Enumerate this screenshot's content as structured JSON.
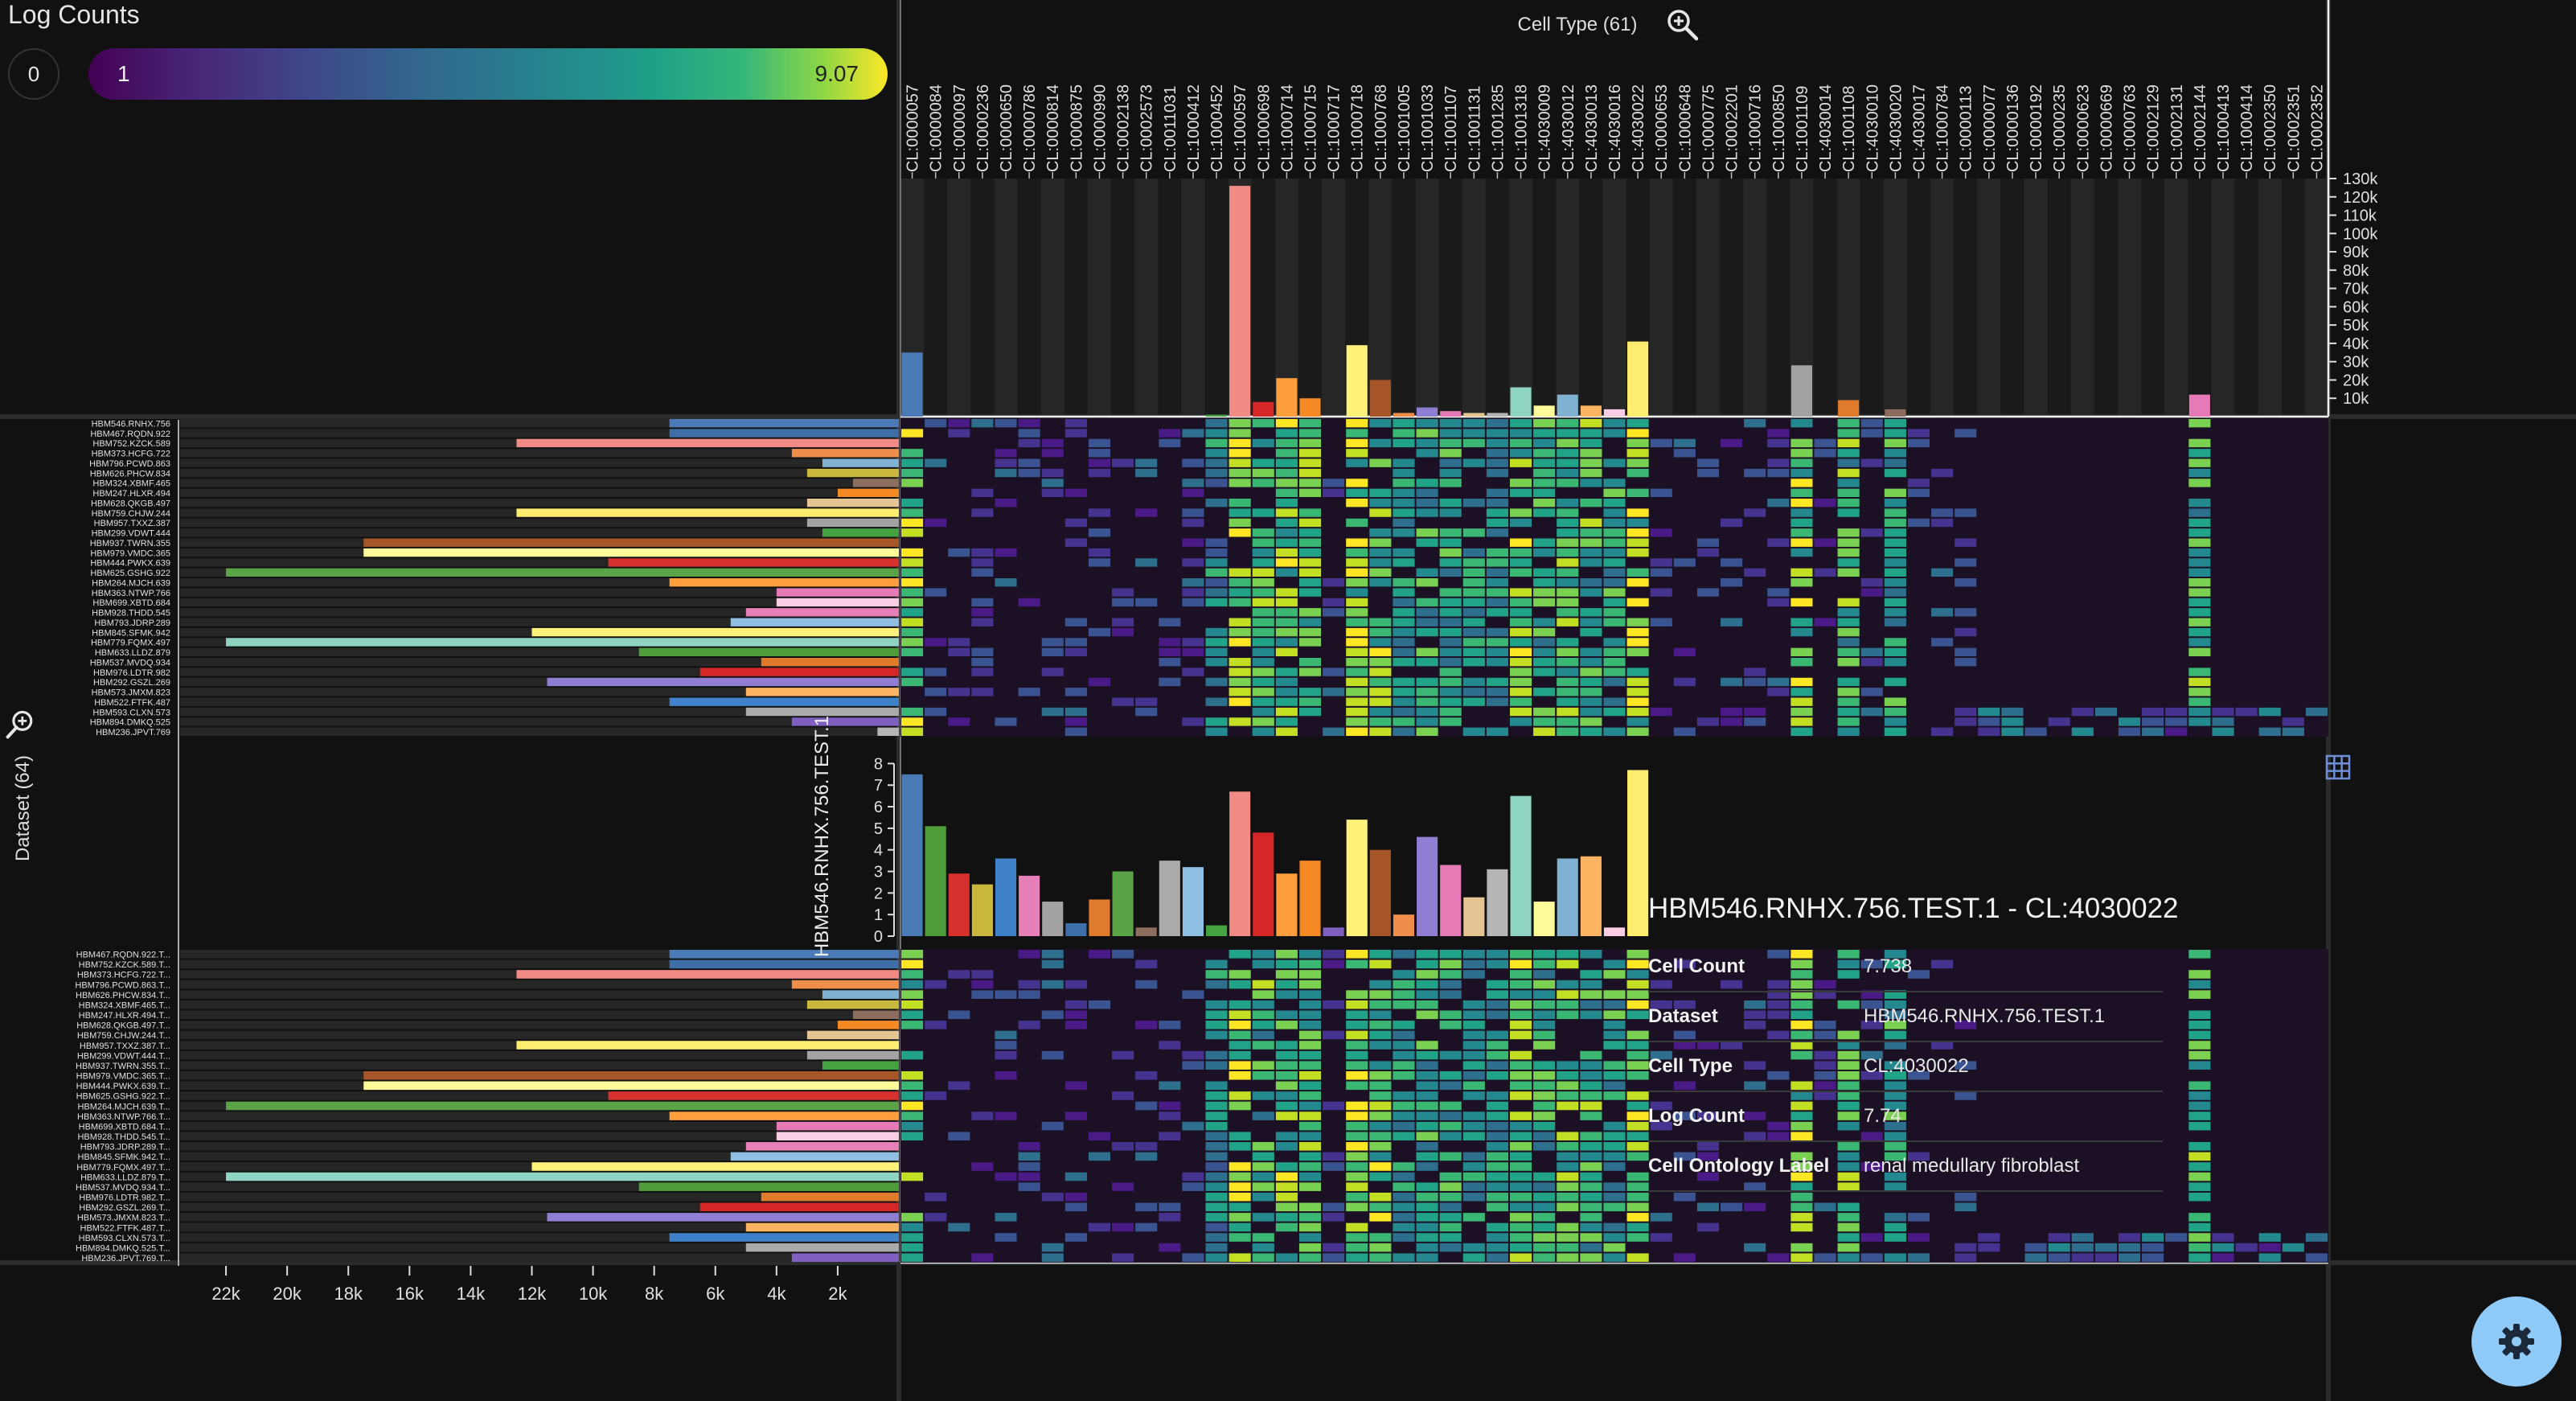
{
  "legend": {
    "title": "Log Counts",
    "zero_label": "0",
    "min_label": "1",
    "max_label": "9.07"
  },
  "x_axis": {
    "title": "Cell Type (61)"
  },
  "y_axis": {
    "title": "Dataset (64)"
  },
  "colors": {
    "background": "#111111",
    "accent": "#90caf9"
  },
  "icons": {
    "zoom_x": "zoom-in-icon",
    "zoom_y": "zoom-in-icon",
    "grid": "grid-icon",
    "settings": "gear-icon"
  },
  "tooltip": {
    "title": "HBM546.RNHX.756.TEST.1 - CL:4030022",
    "rows": [
      {
        "key": "Cell Count",
        "value": "7.738"
      },
      {
        "key": "Dataset",
        "value": "HBM546.RNHX.756.TEST.1"
      },
      {
        "key": "Cell Type",
        "value": "CL:4030022"
      },
      {
        "key": "Log Count",
        "value": "7.74"
      },
      {
        "key": "Cell Ontology Label",
        "value": "renal medullary fibroblast"
      }
    ]
  },
  "chart_data": [
    {
      "type": "bar",
      "name": "cell-type-totals",
      "categories": [
        "CL:0000057",
        "CL:0000084",
        "CL:0000097",
        "CL:0000236",
        "CL:0000650",
        "CL:0000786",
        "CL:0000814",
        "CL:0000875",
        "CL:0000990",
        "CL:0002138",
        "CL:0002573",
        "CL:0011031",
        "CL:1000412",
        "CL:1000452",
        "CL:1000597",
        "CL:1000698",
        "CL:1000714",
        "CL:1000715",
        "CL:1000717",
        "CL:1000718",
        "CL:1000768",
        "CL:1001005",
        "CL:1001033",
        "CL:1001107",
        "CL:1001131",
        "CL:1001285",
        "CL:1001318",
        "CL:4030009",
        "CL:4030012",
        "CL:4030013",
        "CL:4030016",
        "CL:4030022",
        "CL:0000653",
        "CL:1000648",
        "CL:0000775",
        "CL:0002201",
        "CL:1000716",
        "CL:1000850",
        "CL:1001109",
        "CL:4030014",
        "CL:1001108",
        "CL:4030010",
        "CL:4030020",
        "CL:4030017",
        "CL:1000784",
        "CL:0000113",
        "CL:0000077",
        "CL:0000136",
        "CL:0000192",
        "CL:0000235",
        "CL:0000623",
        "CL:0000669",
        "CL:0000763",
        "CL:0002129",
        "CL:0002131",
        "CL:0002144",
        "CL:1000413",
        "CL:1000414",
        "CL:0002350",
        "CL:0002351",
        "CL:0002352"
      ],
      "values": [
        35000,
        0,
        0,
        0,
        0,
        0,
        0,
        0,
        0,
        0,
        0,
        0,
        0,
        1000,
        126000,
        8000,
        21000,
        10000,
        0,
        39000,
        20000,
        2000,
        5000,
        3000,
        2000,
        2000,
        16000,
        6000,
        12000,
        6000,
        4000,
        41000,
        0,
        0,
        0,
        0,
        0,
        0,
        28000,
        0,
        9000,
        0,
        4000,
        0,
        0,
        0,
        0,
        0,
        0,
        0,
        0,
        0,
        0,
        0,
        0,
        12000,
        0,
        0,
        0,
        0,
        0
      ],
      "y_ticks": [
        "10k",
        "20k",
        "30k",
        "40k",
        "50k",
        "60k",
        "70k",
        "80k",
        "90k",
        "100k",
        "110k",
        "120k",
        "130k"
      ],
      "ylim": [
        0,
        130000
      ]
    },
    {
      "type": "bar",
      "name": "dataset-totals",
      "orientation": "horizontal",
      "categories": [
        "HBM546.RNHX.756",
        "HBM467.RQDN.922",
        "HBM752.KZCK.589",
        "HBM373.HCFG.722",
        "HBM796.PCWD.863",
        "HBM626.PHCW.834",
        "HBM324.XBMF.465",
        "HBM247.HLXR.494",
        "HBM628.QKGB.497",
        "HBM759.CHJW.244",
        "HBM957.TXXZ.387",
        "HBM299.VDWT.444",
        "HBM937.TWRN.355",
        "HBM979.VMDC.365",
        "HBM444.PWKX.639",
        "HBM625.GSHG.922",
        "HBM264.MJCH.639",
        "HBM363.NTWP.766",
        "HBM699.XBTD.684",
        "HBM928.THDD.545",
        "HBM793.JDRP.289",
        "HBM845.SFMK.942",
        "HBM779.FQMX.497",
        "HBM633.LLDZ.879",
        "HBM537.MVDQ.934",
        "HBM976.LDTR.982",
        "HBM292.GSZL.269",
        "HBM573.JMXM.823",
        "HBM522.FTFK.487",
        "HBM593.CLXN.573",
        "HBM894.DMKQ.525",
        "HBM236.JPVT.769"
      ],
      "values": [
        7500,
        7500,
        12500,
        3500,
        2500,
        3000,
        1500,
        2000,
        3000,
        12500,
        3000,
        2500,
        17500,
        17500,
        9500,
        22000,
        7500,
        4000,
        4000,
        5000,
        5500,
        12000,
        22000,
        8500,
        4500,
        6500,
        11500,
        5000,
        7500,
        5000,
        3500,
        700
      ],
      "x_ticks": [
        "22k",
        "20k",
        "18k",
        "16k",
        "14k",
        "12k",
        "10k",
        "8k",
        "6k",
        "4k",
        "2k"
      ],
      "xlim": [
        0,
        23500
      ]
    },
    {
      "type": "bar",
      "name": "expanded-row",
      "ylabel": "HBM546.RNHX.756.TEST.1",
      "values": [
        7.5,
        5.1,
        2.9,
        2.4,
        3.6,
        2.8,
        1.6,
        0.6,
        1.7,
        3.0,
        0.4,
        3.5,
        3.2,
        0.5,
        6.7,
        4.8,
        2.9,
        3.5,
        0.4,
        5.4,
        4.0,
        1.0,
        4.6,
        3.3,
        1.8,
        3.1,
        6.5,
        1.6,
        3.6,
        3.7,
        0.4,
        7.7
      ],
      "y_ticks": [
        "0",
        "1",
        "2",
        "3",
        "4",
        "5",
        "6",
        "7",
        "8"
      ],
      "ylim": [
        0,
        8.5
      ]
    },
    {
      "type": "heatmap",
      "name": "log-counts-matrix",
      "rows_upper": [
        "HBM546.RNHX.756",
        "HBM467.RQDN.922",
        "HBM752.KZCK.589",
        "HBM373.HCFG.722",
        "HBM796.PCWD.863",
        "HBM626.PHCW.834",
        "HBM324.XBMF.465",
        "HBM247.HLXR.494",
        "HBM628.QKGB.497",
        "HBM759.CHJW.244",
        "HBM957.TXXZ.387",
        "HBM299.VDWT.444",
        "HBM937.TWRN.355",
        "HBM979.VMDC.365",
        "HBM444.PWKX.639",
        "HBM625.GSHG.922",
        "HBM264.MJCH.639",
        "HBM363.NTWP.766",
        "HBM699.XBTD.684",
        "HBM928.THDD.545",
        "HBM793.JDRP.289",
        "HBM845.SFMK.942",
        "HBM779.FQMX.497",
        "HBM633.LLDZ.879",
        "HBM537.MVDQ.934",
        "HBM976.LDTR.982",
        "HBM292.GSZL.269",
        "HBM573.JMXM.823",
        "HBM522.FTFK.487",
        "HBM593.CLXN.573",
        "HBM894.DMKQ.525",
        "HBM236.JPVT.769"
      ],
      "rows_lower": [
        "HBM467.RQDN.922.T...",
        "HBM752.KZCK.589.T...",
        "HBM373.HCFG.722.T...",
        "HBM796.PCWD.863.T...",
        "HBM626.PHCW.834.T...",
        "HBM324.XBMF.465.T...",
        "HBM247.HLXR.494.T...",
        "HBM628.QKGB.497.T...",
        "HBM759.CHJW.244.T...",
        "HBM957.TXXZ.387.T...",
        "HBM299.VDWT.444.T...",
        "HBM937.TWRN.355.T...",
        "HBM979.VMDC.365.T...",
        "HBM444.PWKX.639.T...",
        "HBM625.GSHG.922.T...",
        "HBM264.MJCH.639.T...",
        "HBM363.NTWP.766.T...",
        "HBM699.XBTD.684.T...",
        "HBM928.THDD.545.T...",
        "HBM793.JDRP.289.T...",
        "HBM845.SFMK.942.T...",
        "HBM779.FQMX.497.T...",
        "HBM633.LLDZ.879.T...",
        "HBM537.MVDQ.934.T...",
        "HBM976.LDTR.982.T...",
        "HBM292.GSZL.269.T...",
        "HBM573.JMXM.823.T...",
        "HBM522.FTFK.487.T...",
        "HBM593.CLXN.573.T...",
        "HBM894.DMKQ.525.T...",
        "HBM236.JPVT.769.T..."
      ],
      "value_range": [
        0,
        9.07
      ]
    }
  ]
}
